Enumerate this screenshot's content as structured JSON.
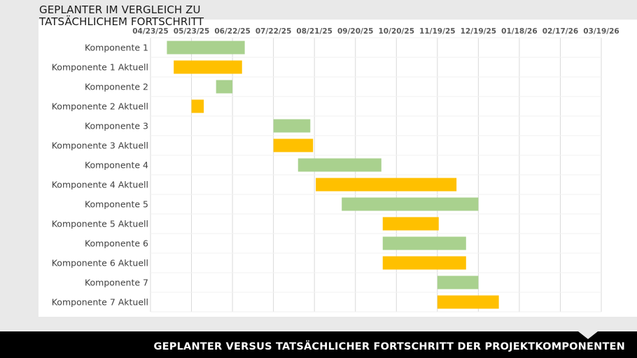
{
  "slide": {
    "footer_title": "GEPLANTER VERSUS TATSÄCHLICHER FORTSCHRITT DER PROJEKTKOMPONENTEN"
  },
  "chart_data": {
    "type": "bar",
    "orientation": "horizontal-gantt",
    "title": "GEPLANTER IM VERGLEICH ZU TATSÄCHLICHEM FORTSCHRITT",
    "x_axis": {
      "type": "date",
      "position": "top",
      "min": "2025-04-23",
      "max": "2026-03-19",
      "tick_dates": [
        "2025-04-23",
        "2025-05-23",
        "2025-06-22",
        "2025-07-22",
        "2025-08-21",
        "2025-09-20",
        "2025-10-20",
        "2025-11-19",
        "2025-12-19",
        "2026-01-18",
        "2026-02-17",
        "2026-03-19"
      ],
      "tick_labels": [
        "04/23/25",
        "05/23/25",
        "06/22/25",
        "07/22/25",
        "08/21/25",
        "09/20/25",
        "10/20/25",
        "11/19/25",
        "12/19/25",
        "01/18/26",
        "02/17/26",
        "03/19/26"
      ]
    },
    "grid": true,
    "legend": "none",
    "colors": {
      "geplant": "#a9d18e",
      "aktuell": "#ffc000"
    },
    "tasks": [
      {
        "label": "Komponente 1",
        "kind": "geplant",
        "start": "2025-05-05",
        "end": "2025-07-01"
      },
      {
        "label": "Komponente 1 Aktuell",
        "kind": "aktuell",
        "start": "2025-05-10",
        "end": "2025-06-29"
      },
      {
        "label": "Komponente 2",
        "kind": "geplant",
        "start": "2025-06-10",
        "end": "2025-06-22"
      },
      {
        "label": "Komponente 2 Aktuell",
        "kind": "aktuell",
        "start": "2025-05-23",
        "end": "2025-06-01"
      },
      {
        "label": "Komponente 3",
        "kind": "geplant",
        "start": "2025-07-22",
        "end": "2025-08-18"
      },
      {
        "label": "Komponente 3 Aktuell",
        "kind": "aktuell",
        "start": "2025-07-22",
        "end": "2025-08-20"
      },
      {
        "label": "Komponente 4",
        "kind": "geplant",
        "start": "2025-08-09",
        "end": "2025-10-09"
      },
      {
        "label": "Komponente 4 Aktuell",
        "kind": "aktuell",
        "start": "2025-08-22",
        "end": "2025-12-03"
      },
      {
        "label": "Komponente 5",
        "kind": "geplant",
        "start": "2025-09-10",
        "end": "2025-12-19"
      },
      {
        "label": "Komponente 5 Aktuell",
        "kind": "aktuell",
        "start": "2025-10-10",
        "end": "2025-11-20"
      },
      {
        "label": "Komponente 6",
        "kind": "geplant",
        "start": "2025-10-10",
        "end": "2025-12-10"
      },
      {
        "label": "Komponente 6 Aktuell",
        "kind": "aktuell",
        "start": "2025-10-10",
        "end": "2025-12-10"
      },
      {
        "label": "Komponente 7",
        "kind": "geplant",
        "start": "2025-11-19",
        "end": "2025-12-19"
      },
      {
        "label": "Komponente 7 Aktuell",
        "kind": "aktuell",
        "start": "2025-11-19",
        "end": "2026-01-03"
      }
    ]
  }
}
